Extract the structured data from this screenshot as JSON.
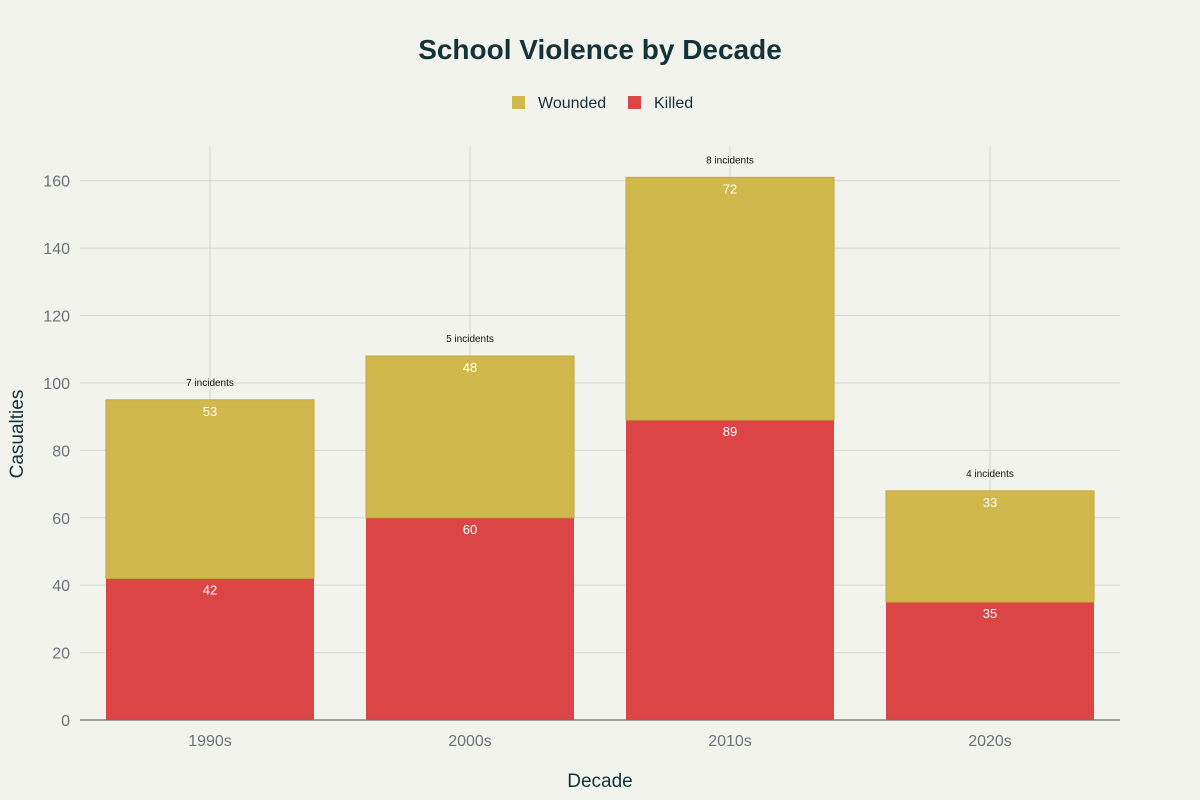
{
  "chart_data": {
    "type": "bar",
    "stacked": true,
    "title": "School Violence by Decade",
    "xlabel": "Decade",
    "ylabel": "Casualties",
    "categories": [
      "1990s",
      "2000s",
      "2010s",
      "2020s"
    ],
    "series": [
      {
        "name": "Killed",
        "values": [
          42,
          60,
          89,
          35
        ],
        "color": "#db4545"
      },
      {
        "name": "Wounded",
        "values": [
          53,
          48,
          72,
          33
        ],
        "color": "#d1b84d"
      }
    ],
    "legend_order": [
      "Wounded",
      "Killed"
    ],
    "annotations": [
      "7 incidents",
      "5 incidents",
      "8 incidents",
      "4 incidents"
    ],
    "ylim": [
      0,
      170
    ],
    "yticks": [
      0,
      20,
      40,
      60,
      80,
      100,
      120,
      140,
      160
    ],
    "grid": true,
    "legend_position": "top-center"
  }
}
